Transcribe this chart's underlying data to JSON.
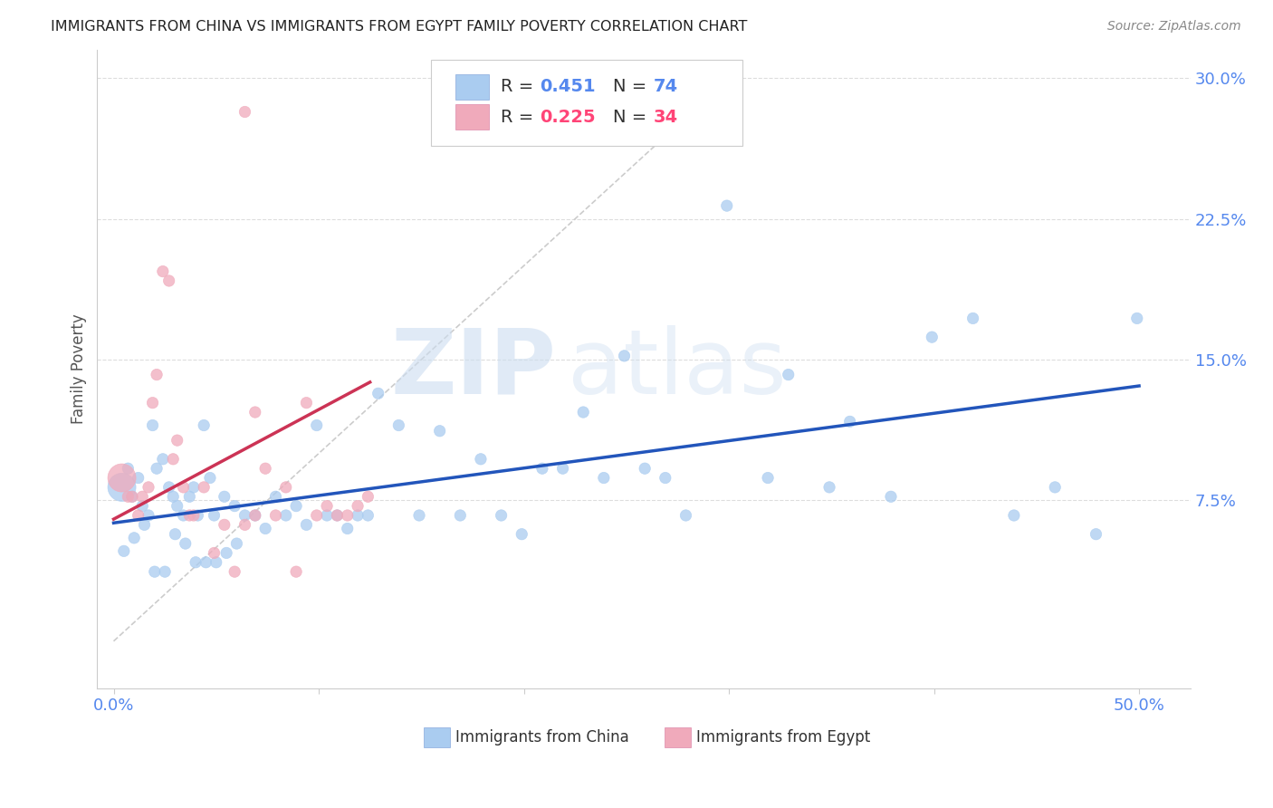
{
  "title": "IMMIGRANTS FROM CHINA VS IMMIGRANTS FROM EGYPT FAMILY POVERTY CORRELATION CHART",
  "source": "Source: ZipAtlas.com",
  "ylabel_label": "Family Poverty",
  "x_ticks": [
    0.0,
    0.1,
    0.2,
    0.3,
    0.4,
    0.5
  ],
  "x_tick_labels": [
    "0.0%",
    "",
    "",
    "",
    "",
    "50.0%"
  ],
  "y_ticks": [
    0.075,
    0.15,
    0.225,
    0.3
  ],
  "y_tick_labels": [
    "7.5%",
    "15.0%",
    "22.5%",
    "30.0%"
  ],
  "xlim": [
    -0.008,
    0.525
  ],
  "ylim": [
    -0.025,
    0.315
  ],
  "china_R": "0.451",
  "china_N": "74",
  "egypt_R": "0.225",
  "egypt_N": "34",
  "china_color": "#aaccf0",
  "egypt_color": "#f0aabb",
  "china_line_color": "#2255bb",
  "egypt_line_color": "#cc3355",
  "diagonal_color": "#cccccc",
  "watermark_zip": "ZIP",
  "watermark_atlas": "atlas",
  "china_scatter_x": [
    0.004,
    0.007,
    0.009,
    0.012,
    0.014,
    0.017,
    0.019,
    0.021,
    0.024,
    0.027,
    0.029,
    0.031,
    0.034,
    0.037,
    0.039,
    0.041,
    0.044,
    0.047,
    0.049,
    0.054,
    0.059,
    0.064,
    0.069,
    0.074,
    0.079,
    0.084,
    0.089,
    0.094,
    0.099,
    0.104,
    0.109,
    0.114,
    0.119,
    0.124,
    0.129,
    0.139,
    0.149,
    0.159,
    0.169,
    0.179,
    0.189,
    0.199,
    0.209,
    0.219,
    0.229,
    0.239,
    0.249,
    0.259,
    0.269,
    0.279,
    0.299,
    0.319,
    0.329,
    0.349,
    0.359,
    0.379,
    0.399,
    0.419,
    0.439,
    0.459,
    0.479,
    0.499,
    0.005,
    0.01,
    0.015,
    0.02,
    0.025,
    0.03,
    0.035,
    0.04,
    0.045,
    0.05,
    0.055,
    0.06
  ],
  "china_scatter_y": [
    0.082,
    0.092,
    0.077,
    0.087,
    0.072,
    0.067,
    0.115,
    0.092,
    0.097,
    0.082,
    0.077,
    0.072,
    0.067,
    0.077,
    0.082,
    0.067,
    0.115,
    0.087,
    0.067,
    0.077,
    0.072,
    0.067,
    0.067,
    0.06,
    0.077,
    0.067,
    0.072,
    0.062,
    0.115,
    0.067,
    0.067,
    0.06,
    0.067,
    0.067,
    0.132,
    0.115,
    0.067,
    0.112,
    0.067,
    0.097,
    0.067,
    0.057,
    0.092,
    0.092,
    0.122,
    0.087,
    0.152,
    0.092,
    0.087,
    0.067,
    0.232,
    0.087,
    0.142,
    0.082,
    0.117,
    0.077,
    0.162,
    0.172,
    0.067,
    0.082,
    0.057,
    0.172,
    0.048,
    0.055,
    0.062,
    0.037,
    0.037,
    0.057,
    0.052,
    0.042,
    0.042,
    0.042,
    0.047,
    0.052
  ],
  "china_scatter_size": [
    500,
    80,
    80,
    80,
    80,
    80,
    80,
    80,
    80,
    80,
    80,
    80,
    80,
    80,
    80,
    80,
    80,
    80,
    80,
    80,
    80,
    80,
    80,
    80,
    80,
    80,
    80,
    80,
    80,
    80,
    80,
    80,
    80,
    80,
    80,
    80,
    80,
    80,
    80,
    80,
    80,
    80,
    80,
    80,
    80,
    80,
    80,
    80,
    80,
    80,
    80,
    80,
    80,
    80,
    80,
    80,
    80,
    80,
    80,
    80,
    80,
    80,
    80,
    80,
    80,
    80,
    80,
    80,
    80,
    80,
    80,
    80,
    80,
    80
  ],
  "egypt_scatter_x": [
    0.004,
    0.007,
    0.009,
    0.012,
    0.014,
    0.017,
    0.019,
    0.021,
    0.024,
    0.027,
    0.029,
    0.031,
    0.034,
    0.037,
    0.039,
    0.044,
    0.049,
    0.054,
    0.059,
    0.064,
    0.069,
    0.074,
    0.079,
    0.084,
    0.089,
    0.094,
    0.099,
    0.104,
    0.109,
    0.114,
    0.119,
    0.124,
    0.064,
    0.069
  ],
  "egypt_scatter_y": [
    0.087,
    0.077,
    0.077,
    0.067,
    0.077,
    0.082,
    0.127,
    0.142,
    0.197,
    0.192,
    0.097,
    0.107,
    0.082,
    0.067,
    0.067,
    0.082,
    0.047,
    0.062,
    0.037,
    0.062,
    0.067,
    0.092,
    0.067,
    0.082,
    0.037,
    0.127,
    0.067,
    0.072,
    0.067,
    0.067,
    0.072,
    0.077,
    0.282,
    0.122
  ],
  "egypt_scatter_size": [
    500,
    80,
    80,
    80,
    80,
    80,
    80,
    80,
    80,
    80,
    80,
    80,
    80,
    80,
    80,
    80,
    80,
    80,
    80,
    80,
    80,
    80,
    80,
    80,
    80,
    80,
    80,
    80,
    80,
    80,
    80,
    80,
    80,
    80
  ],
  "china_line_x": [
    0.0,
    0.5
  ],
  "china_line_y": [
    0.063,
    0.136
  ],
  "egypt_line_x": [
    0.0,
    0.125
  ],
  "egypt_line_y": [
    0.065,
    0.138
  ],
  "diag_line_x": [
    0.0,
    0.305
  ],
  "diag_line_y": [
    0.0,
    0.305
  ]
}
